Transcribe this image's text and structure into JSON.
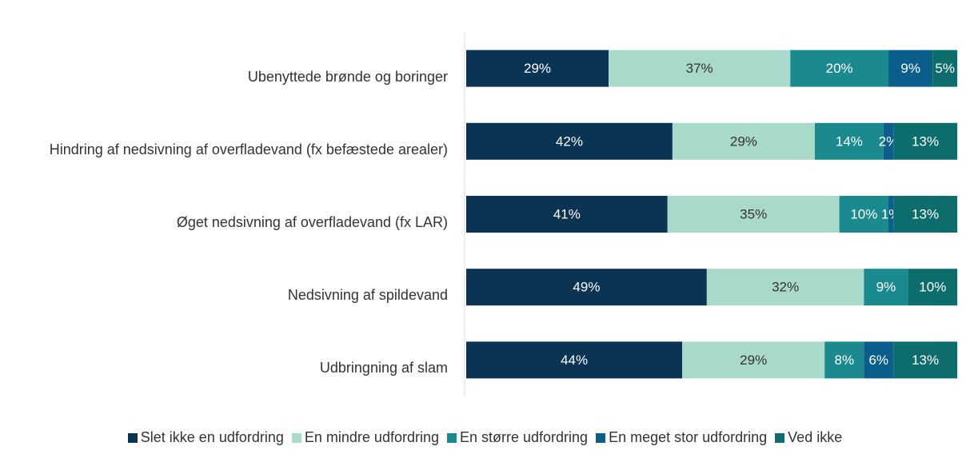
{
  "chart_data": {
    "type": "stacked_bar_horizontal",
    "categories": [
      "Ubenyttede brønde og boringer",
      "Hindring af nedsivning af overfladevand (fx befæstede arealer)",
      "Øget nedsivning af overfladevand (fx LAR)",
      "Nedsivning af spildevand",
      "Udbringning af slam"
    ],
    "xlim": [
      0,
      100
    ],
    "legend": "bottom",
    "series": [
      {
        "name": "Slet ikke en udfordring",
        "color": "#0b3353",
        "values": [
          29,
          42,
          41,
          49,
          44
        ],
        "value_labels": [
          "29%",
          "42%",
          "41%",
          "49%",
          "44%"
        ]
      },
      {
        "name": "En mindre udfordring",
        "color": "#a9d9c8",
        "values": [
          37,
          29,
          35,
          32,
          29
        ],
        "value_labels": [
          "37%",
          "29%",
          "35%",
          "32%",
          "29%"
        ]
      },
      {
        "name": "En større udfordring",
        "color": "#1b8a8f",
        "values": [
          20,
          14,
          10,
          9,
          8
        ],
        "value_labels": [
          "20%",
          "14%",
          "10%",
          "9%",
          "8%"
        ]
      },
      {
        "name": "En meget stor udfordring",
        "color": "#0b5d8c",
        "values": [
          9,
          2,
          1,
          null,
          6
        ],
        "value_labels": [
          "9%",
          "2%",
          "1%",
          null,
          "6%"
        ]
      },
      {
        "name": "Ved ikke",
        "color": "#0d6d6c",
        "values": [
          5,
          13,
          13,
          10,
          13
        ],
        "value_labels": [
          "5%",
          "13%",
          "13%",
          "10%",
          "13%"
        ]
      }
    ]
  }
}
